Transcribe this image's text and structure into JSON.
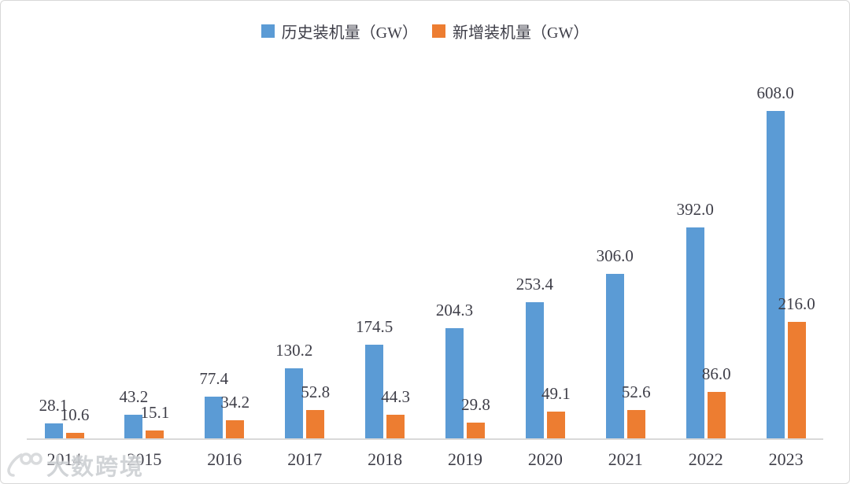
{
  "chart_data": {
    "type": "bar",
    "title": "",
    "xlabel": "",
    "ylabel": "",
    "categories": [
      "2014",
      "2015",
      "2016",
      "2017",
      "2018",
      "2019",
      "2020",
      "2021",
      "2022",
      "2023"
    ],
    "series": [
      {
        "name": "历史装机量（GW）",
        "color": "#5B9BD5",
        "values": [
          28.1,
          43.2,
          77.4,
          130.2,
          174.5,
          204.3,
          253.4,
          306.0,
          392.0,
          608.0
        ]
      },
      {
        "name": "新增装机量（GW）",
        "color": "#ED7D31",
        "values": [
          10.6,
          15.1,
          34.2,
          52.8,
          44.3,
          29.8,
          49.1,
          52.6,
          86.0,
          216.0
        ]
      }
    ],
    "value_labels": "every bar labeled, one decimal place",
    "ylim": [
      0,
      650
    ],
    "grid": false,
    "legend_position": "top-center",
    "axis_line_color": "#D9D9D9",
    "text_color": "#3E3E48"
  },
  "watermark": {
    "text": "大数跨境",
    "logo": "stylized-100-logo"
  },
  "colors": {
    "background": "#FFFFFF",
    "frame_border": "#D8D8D8",
    "watermark_gray": "#CDD0D3"
  }
}
